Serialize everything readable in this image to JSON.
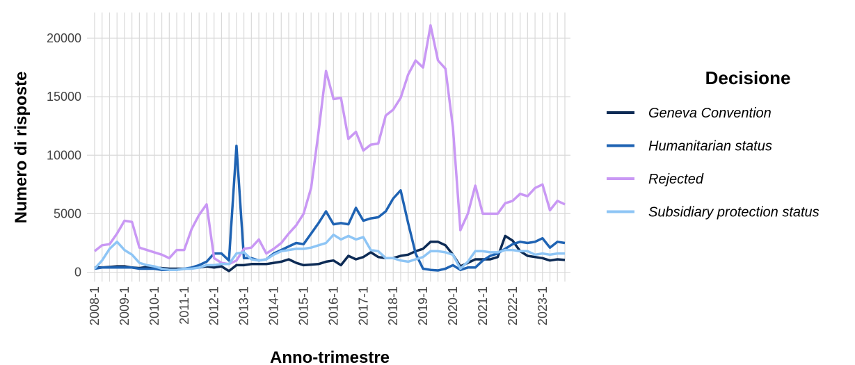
{
  "chart_data": {
    "type": "line",
    "x_label": "Anno-trimestre",
    "y_label": "Numero di risposte",
    "legend_title": "Decisione",
    "legend": "right",
    "grid": true,
    "categories": [
      "2008-1",
      null,
      null,
      null,
      "2009-1",
      null,
      null,
      null,
      "2010-1",
      null,
      null,
      null,
      "2011-1",
      null,
      null,
      null,
      "2012-1",
      null,
      null,
      null,
      "2013-1",
      null,
      null,
      null,
      "2014-1",
      null,
      null,
      null,
      "2015-1",
      null,
      null,
      null,
      "2016-1",
      null,
      null,
      null,
      "2017-1",
      null,
      null,
      null,
      "2018-1",
      null,
      null,
      null,
      "2019-1",
      null,
      null,
      null,
      "2020-1",
      null,
      null,
      null,
      "2021-1",
      null,
      null,
      null,
      "2022-1",
      null,
      null,
      null,
      "2023-1",
      null,
      null,
      null
    ],
    "ylim": [
      -800,
      22200
    ],
    "yticks": [
      0,
      5000,
      10000,
      15000,
      20000
    ],
    "series": [
      {
        "name": "Geneva Convention",
        "color": "#0d2b55",
        "values": [
          400,
          400,
          450,
          500,
          500,
          400,
          350,
          450,
          400,
          350,
          300,
          300,
          300,
          350,
          400,
          500,
          400,
          500,
          100,
          600,
          600,
          700,
          700,
          700,
          800,
          900,
          1100,
          800,
          600,
          650,
          700,
          900,
          1000,
          600,
          1400,
          1100,
          1300,
          1700,
          1300,
          1200,
          1200,
          1400,
          1500,
          1800,
          2000,
          2600,
          2600,
          2300,
          1500,
          500,
          800,
          1100,
          1100,
          1100,
          1300,
          3100,
          2700,
          1800,
          1400,
          1300,
          1200,
          1000,
          1100,
          1050
        ]
      },
      {
        "name": "Humanitarian status",
        "color": "#1f63b3",
        "values": [
          300,
          400,
          400,
          400,
          400,
          400,
          300,
          300,
          300,
          200,
          200,
          200,
          300,
          400,
          600,
          900,
          1600,
          1600,
          1000,
          10800,
          1200,
          1200,
          1000,
          1100,
          1600,
          1900,
          2200,
          2500,
          2400,
          3300,
          4200,
          5200,
          4100,
          4200,
          4100,
          5500,
          4400,
          4600,
          4700,
          5200,
          6300,
          7000,
          4200,
          1600,
          300,
          200,
          150,
          300,
          600,
          200,
          400,
          400,
          1000,
          1400,
          1600,
          2000,
          2400,
          2600,
          2500,
          2600,
          2900,
          2100,
          2600,
          2500
        ]
      },
      {
        "name": "Rejected",
        "color": "#c998f4",
        "values": [
          1800,
          2300,
          2400,
          3300,
          4400,
          4300,
          2100,
          1900,
          1700,
          1500,
          1200,
          1900,
          1900,
          3700,
          4900,
          5800,
          1200,
          800,
          700,
          1000,
          2000,
          2100,
          2800,
          1600,
          2000,
          2500,
          3300,
          4000,
          5000,
          7200,
          12000,
          17200,
          14800,
          14900,
          11400,
          12000,
          10400,
          10900,
          11000,
          13400,
          13900,
          14900,
          16900,
          18100,
          17500,
          21100,
          18100,
          17400,
          12400,
          3600,
          5000,
          7400,
          5000,
          5000,
          5000,
          5900,
          6100,
          6700,
          6500,
          7200,
          7500,
          5300,
          6100,
          5800
        ]
      },
      {
        "name": "Subsidiary protection status",
        "color": "#8ec5f5",
        "values": [
          300,
          1000,
          2000,
          2600,
          1900,
          1500,
          800,
          600,
          500,
          300,
          200,
          200,
          300,
          300,
          400,
          600,
          600,
          700,
          700,
          1600,
          1700,
          1100,
          1000,
          1100,
          1500,
          1800,
          1900,
          2000,
          2000,
          2100,
          2300,
          2500,
          3200,
          2800,
          3100,
          2800,
          3000,
          1900,
          1800,
          1200,
          1200,
          1000,
          900,
          1100,
          1300,
          1800,
          1800,
          1700,
          1500,
          300,
          900,
          1800,
          1800,
          1700,
          1700,
          1900,
          1900,
          1800,
          1800,
          1500,
          1600,
          1500,
          1600,
          1600
        ]
      }
    ]
  }
}
